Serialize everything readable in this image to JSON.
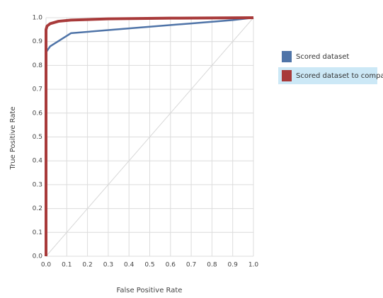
{
  "chart_data": {
    "type": "line",
    "x_label": "False Positive Rate",
    "y_label": "True Positive Rate",
    "xlim": [
      0,
      1
    ],
    "ylim": [
      0,
      1
    ],
    "xticks": [
      {
        "value": 0,
        "label": "0.0"
      },
      0.1,
      0.2,
      0.3,
      0.4,
      0.5,
      0.6,
      0.7,
      0.8,
      0.9,
      {
        "value": 1,
        "label": "1.0"
      }
    ],
    "yticks": [
      {
        "value": 0,
        "label": "0.0"
      },
      0.1,
      0.2,
      0.3,
      0.4,
      0.5,
      0.6,
      0.7,
      0.8,
      0.9,
      {
        "value": 1,
        "label": "1.0"
      }
    ],
    "grid": true,
    "legend_position": "right",
    "series": [
      {
        "name": "Scored dataset",
        "color": "#4f74a8",
        "x": [
          0,
          0,
          0.02,
          0.12,
          0.3,
          0.5,
          0.7,
          0.9,
          1
        ],
        "values": [
          0,
          0.855,
          0.88,
          0.935,
          0.948,
          0.962,
          0.976,
          0.99,
          1
        ]
      },
      {
        "name": "Scored dataset to compare",
        "color": "#a83a3a",
        "x": [
          0,
          0,
          0.005,
          0.02,
          0.06,
          0.12,
          0.3,
          0.6,
          1
        ],
        "values": [
          0,
          0.95,
          0.965,
          0.975,
          0.985,
          0.99,
          0.995,
          0.998,
          1
        ]
      }
    ]
  }
}
